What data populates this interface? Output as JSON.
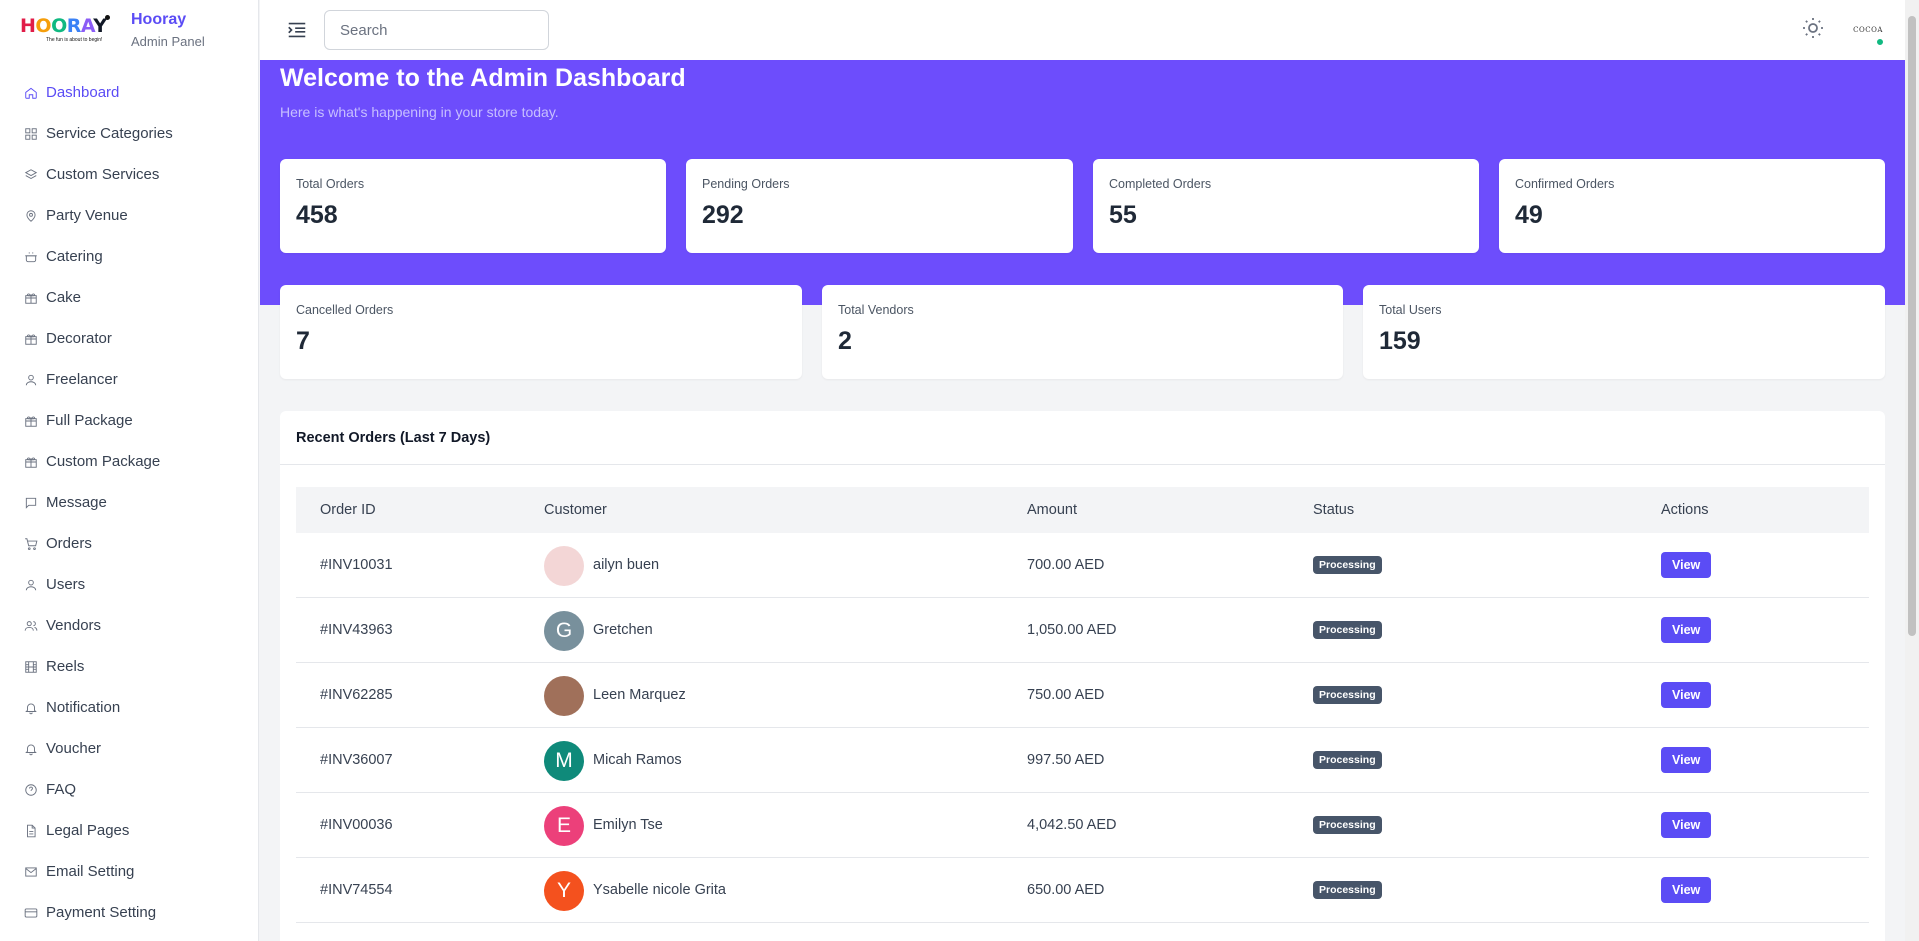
{
  "brand": {
    "logo_letters": [
      "H",
      "O",
      "O",
      "R",
      "A",
      "Y"
    ],
    "logo_tagline": "The fun is about to begin!",
    "name": "Hooray",
    "subtitle": "Admin Panel"
  },
  "sidebar": {
    "items": [
      {
        "label": "Dashboard",
        "icon": "home-icon",
        "active": true
      },
      {
        "label": "Service Categories",
        "icon": "grid-icon"
      },
      {
        "label": "Custom Services",
        "icon": "layers-icon"
      },
      {
        "label": "Party Venue",
        "icon": "map-pin-icon"
      },
      {
        "label": "Catering",
        "icon": "cooking-pot-icon"
      },
      {
        "label": "Cake",
        "icon": "gift-icon"
      },
      {
        "label": "Decorator",
        "icon": "gift-icon"
      },
      {
        "label": "Freelancer",
        "icon": "user-icon"
      },
      {
        "label": "Full Package",
        "icon": "gift-icon"
      },
      {
        "label": "Custom Package",
        "icon": "gift-icon"
      },
      {
        "label": "Message",
        "icon": "message-icon"
      },
      {
        "label": "Orders",
        "icon": "cart-icon"
      },
      {
        "label": "Users",
        "icon": "user-icon"
      },
      {
        "label": "Vendors",
        "icon": "users-icon"
      },
      {
        "label": "Reels",
        "icon": "film-icon"
      },
      {
        "label": "Notification",
        "icon": "bell-icon"
      },
      {
        "label": "Voucher",
        "icon": "bell-icon"
      },
      {
        "label": "FAQ",
        "icon": "help-circle-icon"
      },
      {
        "label": "Legal Pages",
        "icon": "file-icon"
      },
      {
        "label": "Email Setting",
        "icon": "mail-icon"
      },
      {
        "label": "Payment Setting",
        "icon": "credit-card-icon"
      }
    ]
  },
  "header": {
    "search_placeholder": "Search",
    "avatar_text": "COCOA"
  },
  "hero": {
    "title": "Welcome to the Admin Dashboard",
    "subtitle": "Here is what's happening in your store today."
  },
  "stats": [
    {
      "label": "Total Orders",
      "value": "458"
    },
    {
      "label": "Pending Orders",
      "value": "292"
    },
    {
      "label": "Completed Orders",
      "value": "55"
    },
    {
      "label": "Confirmed Orders",
      "value": "49"
    },
    {
      "label": "Cancelled Orders",
      "value": "7"
    },
    {
      "label": "Total Vendors",
      "value": "2"
    },
    {
      "label": "Total Users",
      "value": "159"
    }
  ],
  "orders": {
    "title": "Recent Orders (Last 7 Days)",
    "columns": [
      "Order ID",
      "Customer",
      "Amount",
      "Status",
      "Actions"
    ],
    "rows": [
      {
        "id": "#INV10031",
        "customer": "ailyn buen",
        "initial": "",
        "avatar_color": "#f3d6d6",
        "amount": "700.00 AED",
        "status": "Processing",
        "action": "View"
      },
      {
        "id": "#INV43963",
        "customer": "Gretchen",
        "initial": "G",
        "avatar_color": "#78909c",
        "amount": "1,050.00 AED",
        "status": "Processing",
        "action": "View"
      },
      {
        "id": "#INV62285",
        "customer": "Leen Marquez",
        "initial": "",
        "avatar_color": "#a0705a",
        "amount": "750.00 AED",
        "status": "Processing",
        "action": "View"
      },
      {
        "id": "#INV36007",
        "customer": "Micah Ramos",
        "initial": "M",
        "avatar_color": "#0f8a7a",
        "amount": "997.50 AED",
        "status": "Processing",
        "action": "View"
      },
      {
        "id": "#INV00036",
        "customer": "Emilyn Tse",
        "initial": "E",
        "avatar_color": "#ec407a",
        "amount": "4,042.50 AED",
        "status": "Processing",
        "action": "View"
      },
      {
        "id": "#INV74554",
        "customer": "Ysabelle nicole Grita",
        "initial": "Y",
        "avatar_color": "#f4511e",
        "amount": "650.00 AED",
        "status": "Processing",
        "action": "View"
      }
    ]
  },
  "colors": {
    "accent": "#5b4cf5",
    "hero_bg": "#6d4dfc",
    "badge_bg": "#475569",
    "online": "#10b981"
  }
}
